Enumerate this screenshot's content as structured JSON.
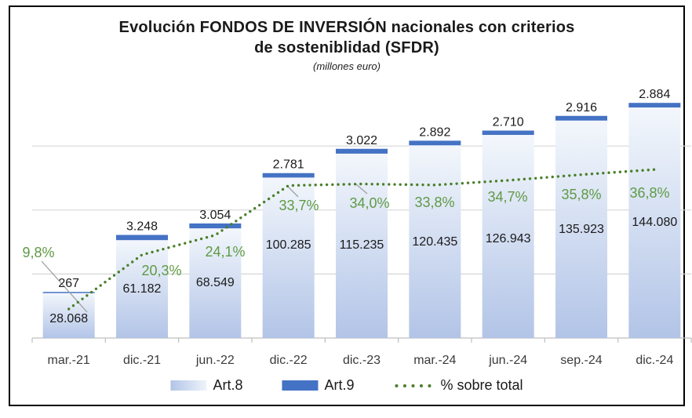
{
  "title": {
    "line1": "Evolución FONDOS DE INVERSIÓN nacionales con criterios",
    "line2": "de sosteniblidad (SFDR)",
    "subtitle": "(millones euro)"
  },
  "legend": {
    "position": "bottom-center",
    "items": [
      {
        "label": "Art.8",
        "swatch": "gradient-blue-bar"
      },
      {
        "label": "Art.9",
        "swatch": "solid-blue-bar"
      },
      {
        "label": "% sobre total",
        "swatch": "green-dotted-line"
      }
    ]
  },
  "colors": {
    "art8_gradient_top": "#f3f7fc",
    "art8_gradient_bottom": "#b2c4e7",
    "art9_blue": "#4472c4",
    "line_green": "#4a7f2a",
    "pct_text_green": "#5f9a44",
    "value_label_text": "#1a1a1a",
    "axis_label_text": "#3a3a3a",
    "gridline": "#d6d6d6",
    "axis_line": "#bfbfbf",
    "leader_line": "#a0a0a0",
    "frame_border": "#000000"
  },
  "chart_data": {
    "type": "bar",
    "subtype": "stacked-bars-with-secondary-line",
    "title": "Evolución FONDOS DE INVERSIÓN nacionales con criterios de sosteniblidad (SFDR)",
    "subtitle": "(millones euro)",
    "categories": [
      "mar.-21",
      "dic.-21",
      "jun.-22",
      "dic.-22",
      "dic.-23",
      "mar.-24",
      "jun.-24",
      "sep.-24",
      "dic.-24"
    ],
    "series": [
      {
        "name": "Art.8",
        "type": "bar",
        "stack": "base",
        "values": [
          28068,
          61182,
          68549,
          100285,
          115235,
          120435,
          126943,
          135923,
          144080
        ],
        "labels": [
          "28.068",
          "61.182",
          "68.549",
          "100.285",
          "115.235",
          "120.435",
          "126.943",
          "135.923",
          "144.080"
        ]
      },
      {
        "name": "Art.9",
        "type": "bar",
        "stack": "top",
        "values": [
          267,
          3248,
          3054,
          2781,
          3022,
          2892,
          2710,
          2916,
          2884
        ],
        "labels": [
          "267",
          "3.248",
          "3.054",
          "2.781",
          "3.022",
          "2.892",
          "2.710",
          "2.916",
          "2.884"
        ]
      },
      {
        "name": "% sobre total",
        "type": "line",
        "style": "dotted",
        "axis": "secondary",
        "values": [
          9.8,
          20.3,
          24.1,
          33.7,
          34.0,
          33.8,
          34.7,
          35.8,
          36.8
        ],
        "labels": [
          "9,8%",
          "20,3%",
          "24,1%",
          "33,7%",
          "34,0%",
          "33,8%",
          "34,7%",
          "35,8%",
          "36,8%"
        ]
      }
    ],
    "xlabel": "",
    "ylabel": "",
    "primary_ylim": [
      0,
      160000
    ],
    "gridline_values": [
      40000,
      80000,
      120000
    ],
    "grid": "horizontal-only",
    "axis_value_labels_shown": false,
    "legend_position": "bottom"
  }
}
